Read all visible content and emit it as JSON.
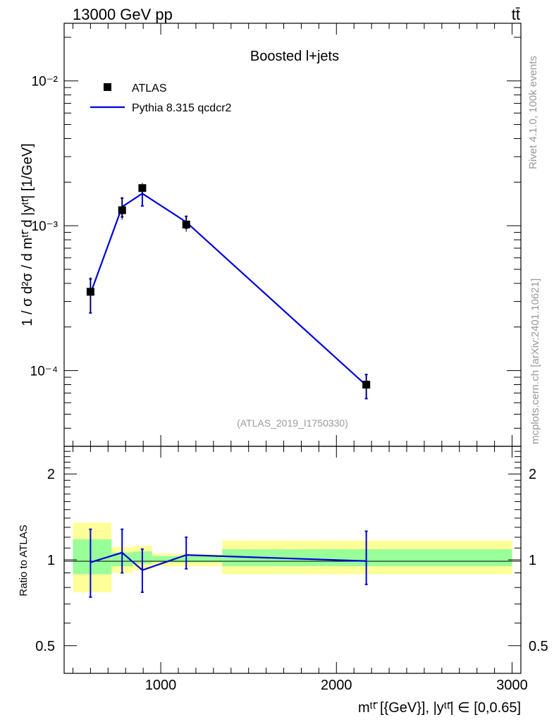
{
  "header": {
    "left": "13000 GeV pp",
    "right": "tt̄"
  },
  "side": {
    "rivet": "Rivet 4.1.0,  100k events",
    "mcplots": "mcplots.cern.ch [arXiv:2401.10621]"
  },
  "colors": {
    "mc": "#0000dd",
    "data": "#000000",
    "band_outer": "#ffff99",
    "band_inner": "#99ff99",
    "watermark": "#999999"
  },
  "chart_data": [
    {
      "type": "scatter",
      "panel": "main",
      "title": "Boosted l+jets",
      "annotation": "(ATLAS_2019_I1750330)",
      "ylabel": "1 / σ d²σ / d mᵗᵗ̄ d |yᵗᵗ̄| [1/GeV]",
      "yscale": "log",
      "ylim": [
        3e-05,
        0.025
      ],
      "xlim": [
        450,
        3050
      ],
      "ytick_labels": [
        "10⁻⁴",
        "10⁻³",
        "10⁻²"
      ],
      "ytick_values": [
        0.0001,
        0.001,
        0.01
      ],
      "legend": [
        "ATLAS",
        "Pythia 8.315 qcdcr2"
      ],
      "legend_position": "top-left",
      "series": [
        {
          "name": "ATLAS",
          "style": "markers",
          "x": [
            600,
            780,
            895,
            1145,
            2170
          ],
          "y": [
            0.00035,
            0.00128,
            0.00182,
            0.00102,
            8e-05
          ],
          "yerr_low": [
            0.0001,
            0.00018,
            0.00015,
            0.00011,
            1.5e-05
          ],
          "yerr_high": [
            9e-05,
            0.0003,
            0.00016,
            0.00016,
            1.5e-05
          ]
        },
        {
          "name": "Pythia 8.315 qcdcr2",
          "style": "line",
          "x": [
            600,
            780,
            895,
            1145,
            2170
          ],
          "y": [
            0.00034,
            0.00135,
            0.00167,
            0.00106,
            7.9e-05
          ],
          "yerr_low": [
            9e-05,
            0.0002,
            0.0003,
            0.0001,
            1.5e-05
          ],
          "yerr_high": [
            9e-05,
            0.0002,
            0.0002,
            0.0001,
            1.5e-05
          ]
        }
      ]
    },
    {
      "type": "area",
      "panel": "ratio",
      "ylabel": "Ratio to ATLAS",
      "xlabel": "mᵗᵗ̄ [{GeV}], |yᵗᵗ̄| ∈ [0,0.65]",
      "yscale": "log",
      "ylim": [
        0.4,
        2.5
      ],
      "xlim": [
        450,
        3050
      ],
      "xtick_labels": [
        "1000",
        "2000",
        "3000"
      ],
      "xtick_values": [
        1000,
        2000,
        3000
      ],
      "ytick_labels": [
        "0.5",
        "1",
        "2"
      ],
      "ytick_values": [
        0.5,
        1,
        2
      ],
      "bins": [
        {
          "x0": 500,
          "x1": 720,
          "outer": [
            0.77,
            1.35
          ],
          "inner": [
            0.89,
            1.18
          ]
        },
        {
          "x0": 720,
          "x1": 840,
          "outer": [
            0.9,
            1.11
          ],
          "inner": [
            0.95,
            1.06
          ]
        },
        {
          "x0": 840,
          "x1": 950,
          "outer": [
            0.92,
            1.12
          ],
          "inner": [
            0.97,
            1.07
          ]
        },
        {
          "x0": 950,
          "x1": 1350,
          "outer": [
            0.95,
            1.05
          ],
          "inner": [
            0.98,
            1.03
          ]
        },
        {
          "x0": 1350,
          "x1": 3000,
          "outer": [
            0.89,
            1.17
          ],
          "inner": [
            0.95,
            1.09
          ]
        }
      ],
      "series": [
        {
          "name": "Pythia 8.315 qcdcr2 / ATLAS",
          "x": [
            600,
            780,
            895,
            1145,
            2170
          ],
          "y": [
            0.98,
            1.06,
            0.92,
            1.04,
            0.99
          ],
          "yerr_low": [
            0.24,
            0.16,
            0.15,
            0.11,
            0.17
          ],
          "yerr_high": [
            0.3,
            0.22,
            0.17,
            0.16,
            0.27
          ]
        }
      ]
    }
  ]
}
